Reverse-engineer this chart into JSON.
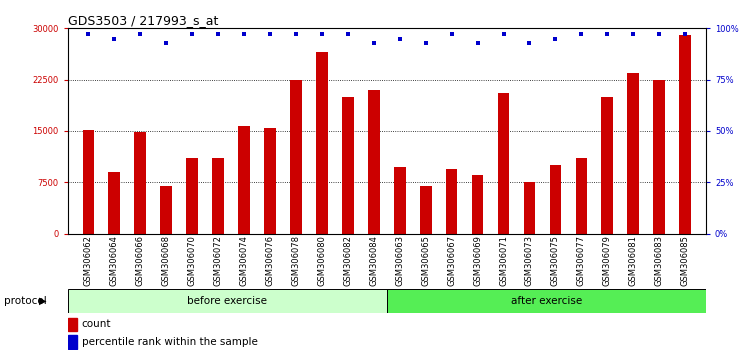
{
  "title": "GDS3503 / 217993_s_at",
  "categories": [
    "GSM306062",
    "GSM306064",
    "GSM306066",
    "GSM306068",
    "GSM306070",
    "GSM306072",
    "GSM306074",
    "GSM306076",
    "GSM306078",
    "GSM306080",
    "GSM306082",
    "GSM306084",
    "GSM306063",
    "GSM306065",
    "GSM306067",
    "GSM306069",
    "GSM306071",
    "GSM306073",
    "GSM306075",
    "GSM306077",
    "GSM306079",
    "GSM306081",
    "GSM306083",
    "GSM306085"
  ],
  "bar_values": [
    15200,
    9000,
    14800,
    7000,
    11000,
    11000,
    15800,
    15500,
    22500,
    26500,
    20000,
    21000,
    9800,
    7000,
    9500,
    8500,
    20500,
    7500,
    10000,
    11000,
    20000,
    23500,
    22500,
    29000
  ],
  "percentile_values": [
    97,
    95,
    97,
    93,
    97,
    97,
    97,
    97,
    97,
    97,
    97,
    93,
    95,
    93,
    97,
    93,
    97,
    93,
    95,
    97,
    97,
    97,
    97,
    97
  ],
  "bar_color": "#cc0000",
  "percentile_color": "#0000cc",
  "bg_color": "#ffffff",
  "plot_bg_color": "#ffffff",
  "yticks_left": [
    0,
    7500,
    15000,
    22500,
    30000
  ],
  "yticks_right": [
    0,
    25,
    50,
    75,
    100
  ],
  "ymax": 30000,
  "before_label": "before exercise",
  "after_label": "after exercise",
  "before_color": "#ccffcc",
  "after_color": "#55ee55",
  "protocol_label": "protocol",
  "legend_count": "count",
  "legend_percentile": "percentile rank within the sample",
  "title_fontsize": 9,
  "tick_fontsize": 6,
  "label_fontsize": 7.5,
  "n_before": 12,
  "n_after": 12
}
